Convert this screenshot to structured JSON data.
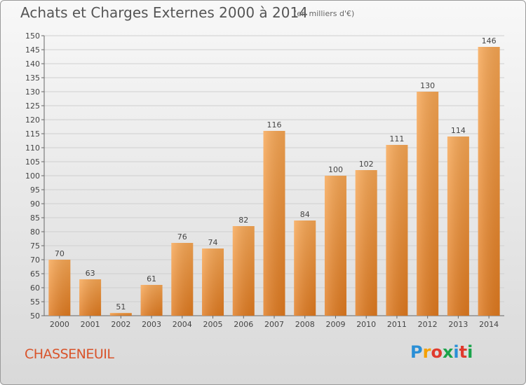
{
  "title": "Achats et Charges Externes 2000 à 2014",
  "subtitle": "(en milliers d'€)",
  "commune": "CHASSENEUIL",
  "logo": {
    "letters": [
      "P",
      "r",
      "o",
      "x",
      "i",
      "t",
      "i"
    ],
    "colors": [
      "#2a8fd6",
      "#f5a000",
      "#e03a2e",
      "#1aa34a",
      "#2a8fd6",
      "#e03a2e",
      "#1aa34a"
    ]
  },
  "colors": {
    "bar_light": "#f7a653",
    "bar_dark": "#e07a1f",
    "title": "#555555",
    "commune": "#d9542b"
  },
  "chart_data": {
    "type": "bar",
    "title": "Achats et Charges Externes 2000 à 2014",
    "subtitle": "(en milliers d'€)",
    "categories": [
      "2000",
      "2001",
      "2002",
      "2003",
      "2004",
      "2005",
      "2006",
      "2007",
      "2008",
      "2009",
      "2010",
      "2011",
      "2012",
      "2013",
      "2014"
    ],
    "values": [
      70,
      63,
      51,
      61,
      76,
      74,
      82,
      116,
      84,
      100,
      102,
      111,
      130,
      114,
      146
    ],
    "ylim": [
      50,
      150
    ],
    "ytick_step": 5,
    "grid": true,
    "xlabel": "",
    "ylabel": ""
  }
}
